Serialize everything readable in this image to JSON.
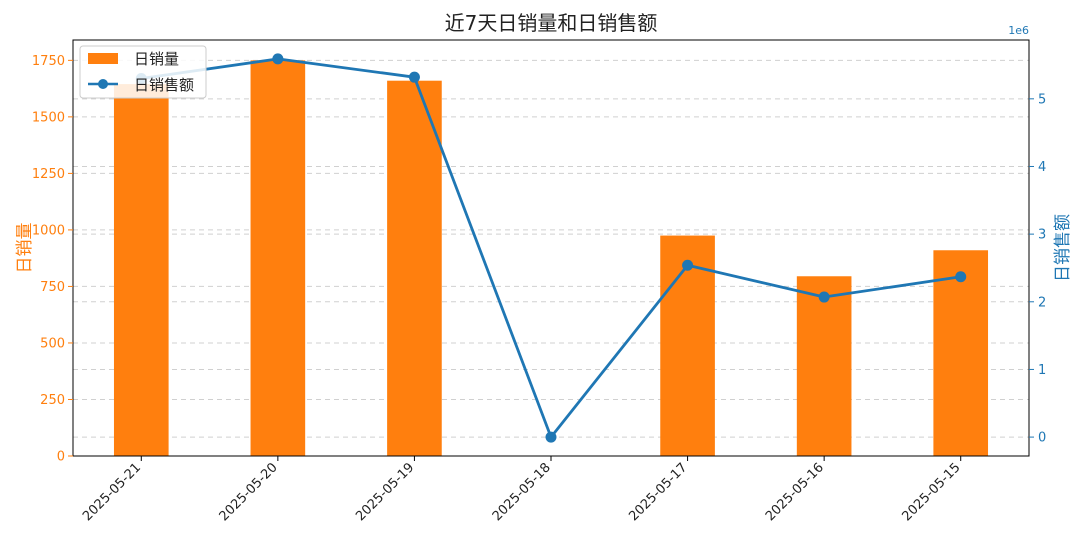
{
  "chart_data": {
    "type": "bar+line",
    "title": "近7天日销量和日销售额",
    "categories": [
      "2025-05-21",
      "2025-05-20",
      "2025-05-19",
      "2025-05-18",
      "2025-05-17",
      "2025-05-16",
      "2025-05-15"
    ],
    "series": [
      {
        "name": "日销量",
        "type": "bar",
        "axis": "left",
        "color": "#ff7f0e",
        "values": [
          1645,
          1750,
          1660,
          0,
          975,
          795,
          910
        ]
      },
      {
        "name": "日销售额",
        "type": "line",
        "axis": "right",
        "color": "#1f77b4",
        "values": [
          5300000,
          5590000,
          5320000,
          0,
          2540000,
          2070000,
          2370000
        ]
      }
    ],
    "ylabel_left": "日销量",
    "ylabel_right": "日销售额",
    "ylim_left": [
      0,
      1840
    ],
    "yticks_left": [
      0,
      250,
      500,
      750,
      1000,
      1250,
      1500,
      1750
    ],
    "ylim_right": [
      -279500,
      5869500
    ],
    "yticks_right": [
      0,
      1,
      2,
      3,
      4,
      5
    ],
    "right_axis_exponent": "1e6",
    "right_axis_scale": 1000000,
    "grid": "horizontal-dashed",
    "legend_position": "top-left",
    "colors": {
      "bar": "#ff7f0e",
      "line": "#1f77b4",
      "grid": "#d0d0d0"
    }
  }
}
